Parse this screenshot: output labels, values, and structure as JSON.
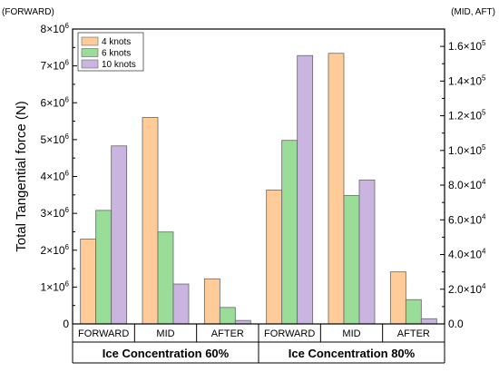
{
  "chart_data": {
    "type": "bar",
    "left_axis_tag": "(FORWARD)",
    "right_axis_tag": "(MID, AFT)",
    "ylabel": "Total Tangential force (N)",
    "left_axis": {
      "ylim": [
        0,
        8000000
      ],
      "ticks": [
        {
          "value": 0,
          "base": "0",
          "exp": ""
        },
        {
          "value": 1000000,
          "base": "1×10",
          "exp": "6"
        },
        {
          "value": 2000000,
          "base": "2×10",
          "exp": "6"
        },
        {
          "value": 3000000,
          "base": "3×10",
          "exp": "6"
        },
        {
          "value": 4000000,
          "base": "4×10",
          "exp": "6"
        },
        {
          "value": 5000000,
          "base": "5×10",
          "exp": "6"
        },
        {
          "value": 6000000,
          "base": "6×10",
          "exp": "6"
        },
        {
          "value": 7000000,
          "base": "7×10",
          "exp": "6"
        },
        {
          "value": 8000000,
          "base": "8×10",
          "exp": "6"
        }
      ]
    },
    "right_axis": {
      "ylim": [
        0,
        170000
      ],
      "ticks": [
        {
          "value": 0,
          "base": "0.0",
          "exp": ""
        },
        {
          "value": 20000,
          "base": "2.0×10",
          "exp": "4"
        },
        {
          "value": 40000,
          "base": "4.0×10",
          "exp": "4"
        },
        {
          "value": 60000,
          "base": "6.0×10",
          "exp": "4"
        },
        {
          "value": 80000,
          "base": "8.0×10",
          "exp": "4"
        },
        {
          "value": 100000,
          "base": "1.0×10",
          "exp": "5"
        },
        {
          "value": 120000,
          "base": "1.2×10",
          "exp": "5"
        },
        {
          "value": 140000,
          "base": "1.4×10",
          "exp": "5"
        },
        {
          "value": 160000,
          "base": "1.6×10",
          "exp": "5"
        }
      ]
    },
    "groups": [
      {
        "name": "Ice Concentration 60%",
        "categories": [
          "FORWARD",
          "MID",
          "AFTER"
        ]
      },
      {
        "name": "Ice Concentration 80%",
        "categories": [
          "FORWARD",
          "MID",
          "AFTER"
        ]
      }
    ],
    "axis_for_category": {
      "FORWARD": "left",
      "MID": "right",
      "AFTER": "right"
    },
    "series": [
      {
        "name": "4 knots",
        "color": "#FFCC99",
        "values": [
          2300000,
          119000,
          26000,
          3630000,
          156000,
          30000
        ]
      },
      {
        "name": "6 knots",
        "color": "#99DD99",
        "values": [
          3080000,
          53000,
          9500,
          4980000,
          74000,
          14000
        ]
      },
      {
        "name": "10 knots",
        "color": "#C9B5E0",
        "values": [
          4830000,
          23000,
          2000,
          7280000,
          83000,
          3000
        ]
      }
    ],
    "legend_position": "top-left",
    "grid": false
  }
}
